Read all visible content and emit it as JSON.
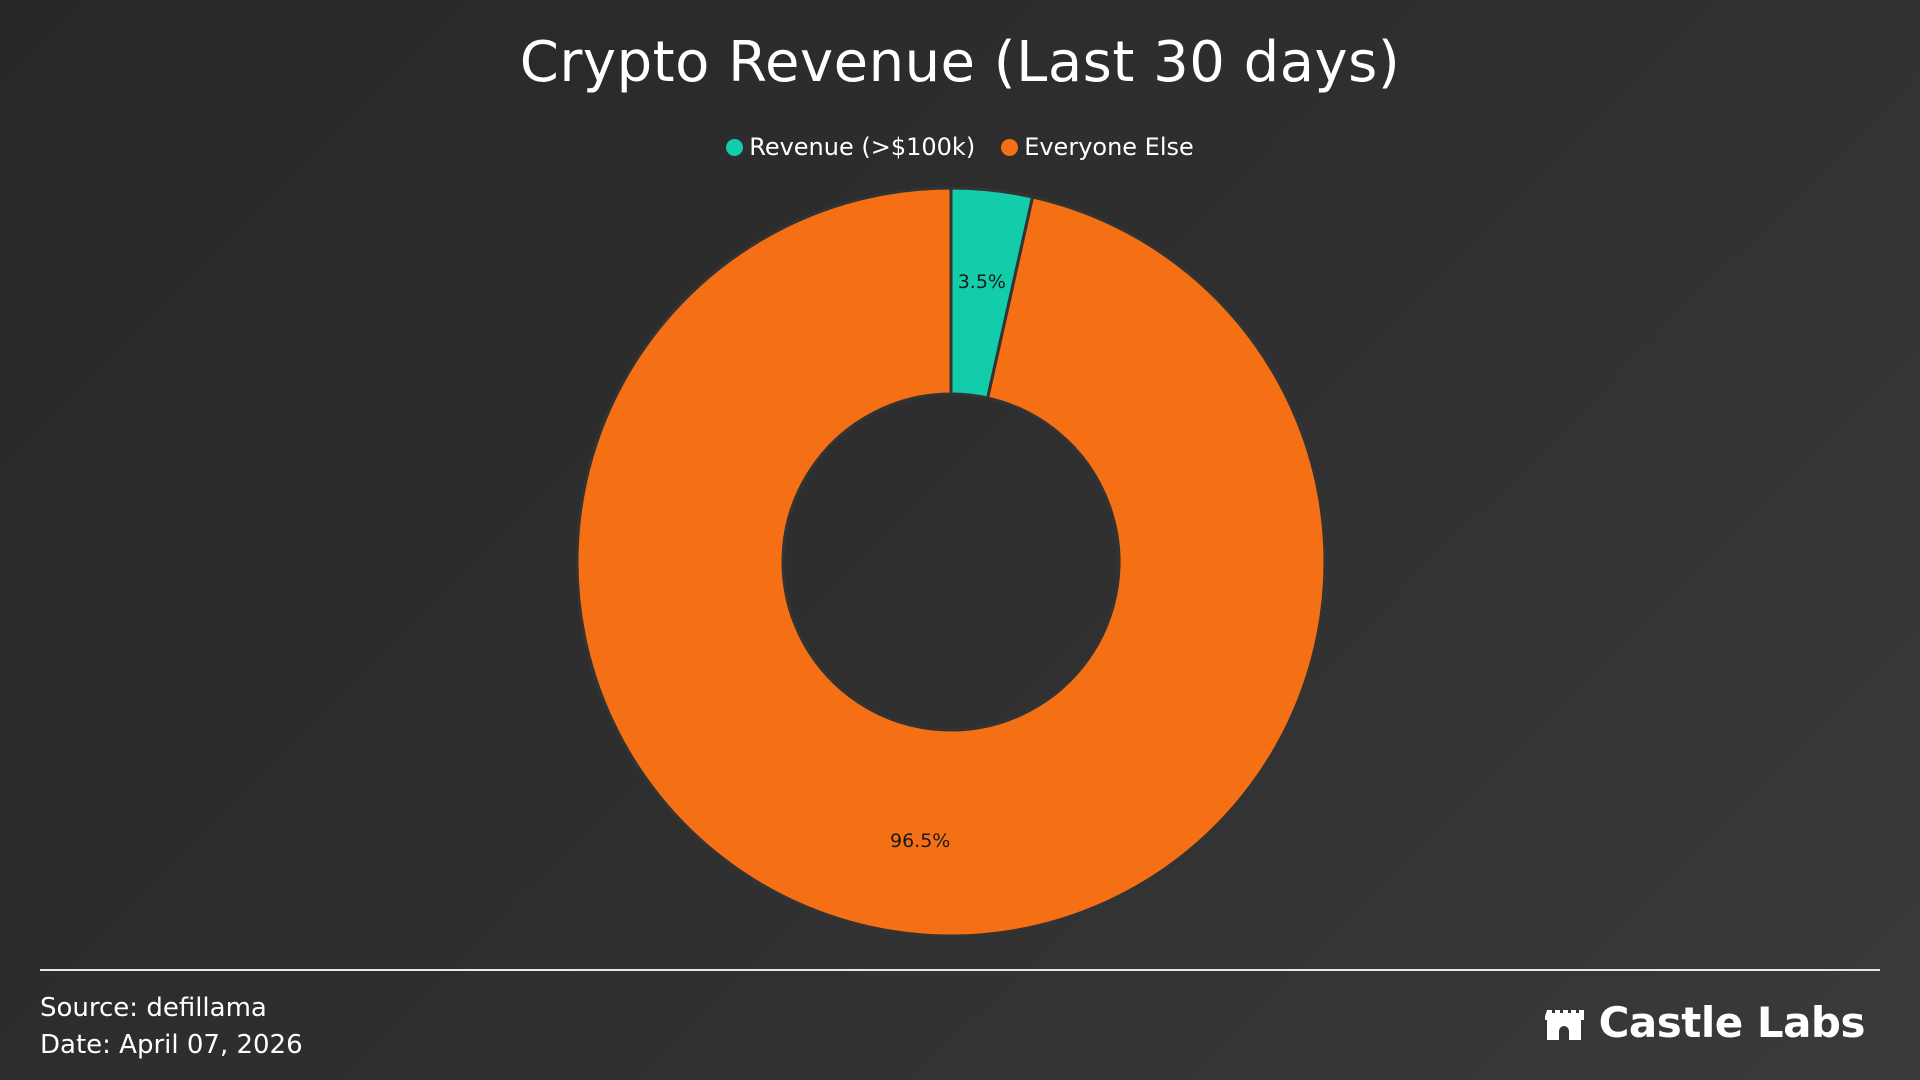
{
  "chart_data": {
    "type": "pie",
    "title": "Crypto Revenue (Last 30 days)",
    "categories": [
      "Revenue (>$100k)",
      "Everyone Else"
    ],
    "values": [
      3.5,
      96.5
    ],
    "value_labels": [
      "3.5%",
      "96.5%"
    ],
    "colors": [
      "#12CCAA",
      "#F57015"
    ],
    "donut": true,
    "legend_position": "top-center"
  },
  "footer": {
    "source": "Source: defillama",
    "date": "Date: April 07, 2026"
  },
  "brand": {
    "name": "Castle Labs",
    "icon": "castle-icon"
  },
  "colors": {
    "background": "#2D2D2D",
    "text": "#FFFFFF",
    "slice_border": "#333333"
  }
}
